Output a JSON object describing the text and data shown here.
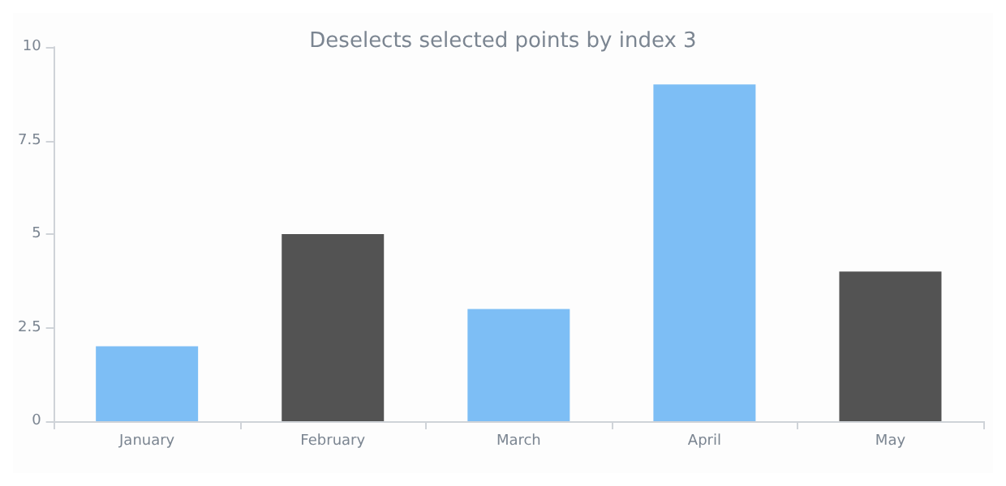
{
  "chart_data": {
    "type": "bar",
    "title": "Deselects selected points by index 3",
    "categories": [
      "January",
      "February",
      "March",
      "April",
      "May"
    ],
    "values": [
      2,
      5,
      3,
      9,
      4
    ],
    "colors": [
      "#7dbef5",
      "#535353",
      "#7dbef5",
      "#7dbef5",
      "#535353"
    ],
    "ylim": [
      0,
      10
    ],
    "yticks": [
      0,
      2.5,
      5,
      7.5,
      10
    ],
    "grid": false
  }
}
